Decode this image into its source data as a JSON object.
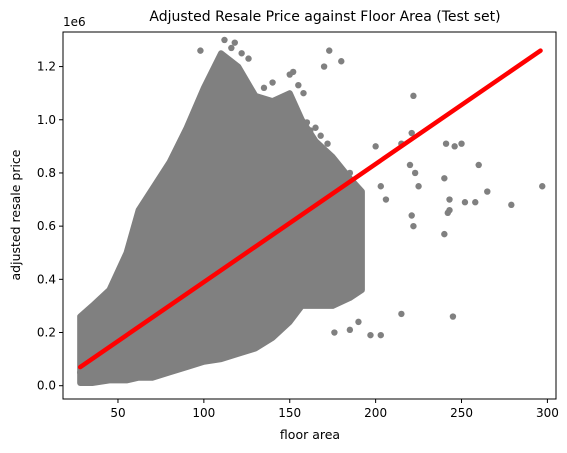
{
  "chart_data": {
    "type": "scatter",
    "title": "Adjusted Resale Price against Floor Area (Test set)",
    "xlabel": "floor area",
    "ylabel": "adjusted resale price",
    "y_offset_label": "1e6",
    "xlim": [
      18,
      305
    ],
    "ylim": [
      -0.05,
      1.33
    ],
    "x_ticks": [
      50,
      100,
      150,
      200,
      250,
      300
    ],
    "x_tick_labels": [
      "50",
      "100",
      "150",
      "200",
      "250",
      "300"
    ],
    "y_ticks": [
      0.0,
      0.2,
      0.4,
      0.6,
      0.8,
      1.0,
      1.2
    ],
    "y_tick_labels": [
      "0.0",
      "0.2",
      "0.4",
      "0.6",
      "0.8",
      "1.0",
      "1.2"
    ],
    "grid": false,
    "colors": {
      "points": "#808080",
      "fit_line": "#ff0000",
      "axes": "#000000"
    },
    "series": [
      {
        "kind": "dense-band",
        "color": "#808080",
        "profile": [
          {
            "x": 28,
            "lo": 0.01,
            "hi": 0.26
          },
          {
            "x": 35,
            "lo": 0.01,
            "hi": 0.3
          },
          {
            "x": 45,
            "lo": 0.02,
            "hi": 0.36
          },
          {
            "x": 55,
            "lo": 0.02,
            "hi": 0.5
          },
          {
            "x": 62,
            "lo": 0.03,
            "hi": 0.66
          },
          {
            "x": 70,
            "lo": 0.03,
            "hi": 0.74
          },
          {
            "x": 80,
            "lo": 0.05,
            "hi": 0.84
          },
          {
            "x": 90,
            "lo": 0.07,
            "hi": 0.97
          },
          {
            "x": 100,
            "lo": 0.09,
            "hi": 1.12
          },
          {
            "x": 110,
            "lo": 0.1,
            "hi": 1.25
          },
          {
            "x": 120,
            "lo": 0.12,
            "hi": 1.2
          },
          {
            "x": 130,
            "lo": 0.14,
            "hi": 1.09
          },
          {
            "x": 140,
            "lo": 0.18,
            "hi": 1.07
          },
          {
            "x": 150,
            "lo": 0.24,
            "hi": 1.1
          },
          {
            "x": 157,
            "lo": 0.3,
            "hi": 1.0
          },
          {
            "x": 165,
            "lo": 0.3,
            "hi": 0.92
          },
          {
            "x": 175,
            "lo": 0.3,
            "hi": 0.86
          },
          {
            "x": 185,
            "lo": 0.33,
            "hi": 0.78
          },
          {
            "x": 192,
            "lo": 0.36,
            "hi": 0.73
          }
        ]
      },
      {
        "kind": "scatter",
        "color": "#808080",
        "points": [
          [
            112,
            1.3
          ],
          [
            118,
            1.29
          ],
          [
            116,
            1.27
          ],
          [
            98,
            1.26
          ],
          [
            122,
            1.25
          ],
          [
            107,
            1.2
          ],
          [
            126,
            1.23
          ],
          [
            150,
            1.17
          ],
          [
            155,
            1.13
          ],
          [
            152,
            1.18
          ],
          [
            158,
            1.1
          ],
          [
            140,
            1.14
          ],
          [
            135,
            1.12
          ],
          [
            173,
            1.26
          ],
          [
            170,
            1.2
          ],
          [
            180,
            1.22
          ],
          [
            178,
            0.83
          ],
          [
            175,
            0.78
          ],
          [
            170,
            0.79
          ],
          [
            185,
            0.8
          ],
          [
            188,
            0.75
          ],
          [
            178,
            0.7
          ],
          [
            183,
            0.68
          ],
          [
            160,
            0.99
          ],
          [
            165,
            0.97
          ],
          [
            168,
            0.94
          ],
          [
            172,
            0.91
          ],
          [
            162,
            0.96
          ],
          [
            200,
            0.9
          ],
          [
            203,
            0.75
          ],
          [
            206,
            0.7
          ],
          [
            197,
            0.19
          ],
          [
            203,
            0.19
          ],
          [
            190,
            0.24
          ],
          [
            185,
            0.21
          ],
          [
            176,
            0.2
          ],
          [
            215,
            0.91
          ],
          [
            215,
            0.27
          ],
          [
            220,
            0.83
          ],
          [
            221,
            0.95
          ],
          [
            222,
            1.09
          ],
          [
            223,
            0.8
          ],
          [
            221,
            0.64
          ],
          [
            222,
            0.6
          ],
          [
            225,
            0.75
          ],
          [
            240,
            0.78
          ],
          [
            240,
            0.57
          ],
          [
            241,
            0.91
          ],
          [
            242,
            0.65
          ],
          [
            243,
            0.66
          ],
          [
            243,
            0.7
          ],
          [
            245,
            0.26
          ],
          [
            246,
            0.9
          ],
          [
            250,
            0.91
          ],
          [
            252,
            0.69
          ],
          [
            260,
            0.83
          ],
          [
            258,
            0.69
          ],
          [
            265,
            0.73
          ],
          [
            279,
            0.68
          ],
          [
            297,
            0.75
          ],
          [
            28,
            0.05
          ],
          [
            29,
            0.02
          ],
          [
            30,
            0.08
          ],
          [
            31,
            0.23
          ],
          [
            32,
            0.25
          ],
          [
            33,
            0.27
          ],
          [
            35,
            0.29
          ]
        ]
      },
      {
        "kind": "line",
        "name": "",
        "color": "#ff0000",
        "x": [
          28,
          296
        ],
        "y": [
          0.07,
          1.26
        ]
      }
    ]
  }
}
